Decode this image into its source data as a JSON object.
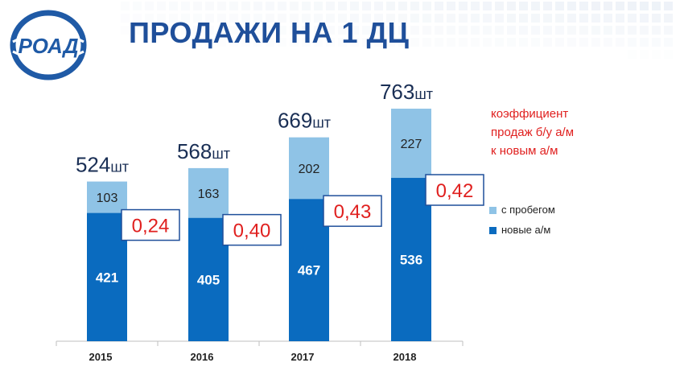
{
  "page": {
    "title": "ПРОДАЖИ НА 1 ДЦ",
    "logo_text": "РОАД"
  },
  "note": {
    "lines": [
      "коэффициент",
      "продаж б/у а/м",
      "к новым а/м"
    ]
  },
  "colors": {
    "new": "#0a6bbf",
    "used": "#8fc3e6",
    "title": "#1f4f9a",
    "ratio": "#e0201f",
    "ratio_border": "#1f4f9a"
  },
  "chart_data": {
    "type": "bar",
    "stacked": true,
    "categories": [
      "2015",
      "2016",
      "2017",
      "2018"
    ],
    "series": [
      {
        "name": "новые а/м",
        "values": [
          421,
          405,
          467,
          536
        ]
      },
      {
        "name": "с пробегом",
        "values": [
          103,
          163,
          202,
          227
        ]
      }
    ],
    "totals": [
      524,
      568,
      669,
      763
    ],
    "total_unit": "шт",
    "ratios": [
      "0,24",
      "0,40",
      "0,43",
      "0,42"
    ],
    "legend_position": "right",
    "grid": false,
    "ylim": [
      0,
      780
    ]
  }
}
